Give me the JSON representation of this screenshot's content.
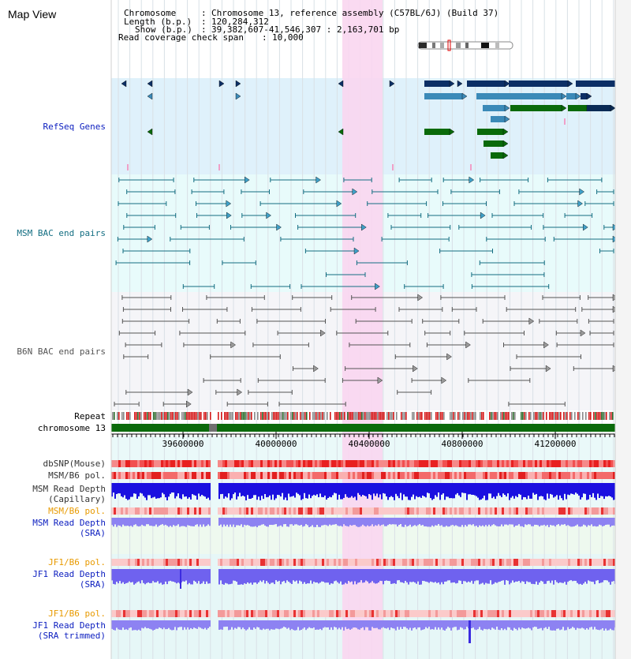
{
  "title": "Map View",
  "info": {
    "chromosome_label": "Chromosome",
    "chromosome_value": "Chromosome 13, reference assembly (C57BL/6J) (Build 37)",
    "length_label": "Length (b.p.)",
    "length_value": "120,284,312",
    "show_label": "Show (b.p.)",
    "show_value": "39,382,607-41,546,307 : 2,163,701 bp",
    "coverage_label": "Read coverage check span",
    "coverage_value": "10,000"
  },
  "tracks": {
    "refseq": "RefSeq Genes",
    "msm_bac": "MSM BAC end pairs",
    "b6n_bac": "B6N BAC end pairs",
    "repeat": "Repeat",
    "chromosome": "chromosome 13",
    "dbsnp": "dbSNP(Mouse)",
    "msm_pol_cap": "MSM/B6 pol.",
    "msm_depth_cap_1": "MSM Read Depth",
    "msm_depth_cap_2": "(Capillary)",
    "msm_pol_sra": "MSM/B6 pol.",
    "msm_depth_sra_1": "MSM Read Depth",
    "msm_depth_sra_2": "(SRA)",
    "jf1_pol": "JF1/B6 pol.",
    "jf1_depth_1": "JF1 Read Depth",
    "jf1_depth_2": "(SRA)",
    "jf1_pol_trim": "JF1/B6 pol.",
    "jf1_trim_1": "JF1 Read Depth",
    "jf1_trim_2": "(SRA trimmed)"
  },
  "axis": {
    "ticks": [
      "39600000",
      "40000000",
      "40400000",
      "40800000",
      "41200000"
    ]
  },
  "colors": {
    "refseq_bg": "#dff1fb",
    "msm_bg": "#e8fbfb",
    "b6n_bg": "#f5f5f8",
    "highlight": "#f9d6f0",
    "gene_dark": "#0c2f66",
    "gene_mid": "#3b8ab8",
    "gene_green": "#0a6a0a",
    "msm_line": "#136e82",
    "b6n_line": "#555555",
    "chromosome": "#0b6a0b",
    "depth_dark": "#1a10e0",
    "depth_light": "#8d82f2",
    "label_blue": "#0b1dbf",
    "label_orange": "#e89a00"
  },
  "icons": {
    "ideogram": "chromosome-ideogram-icon"
  }
}
